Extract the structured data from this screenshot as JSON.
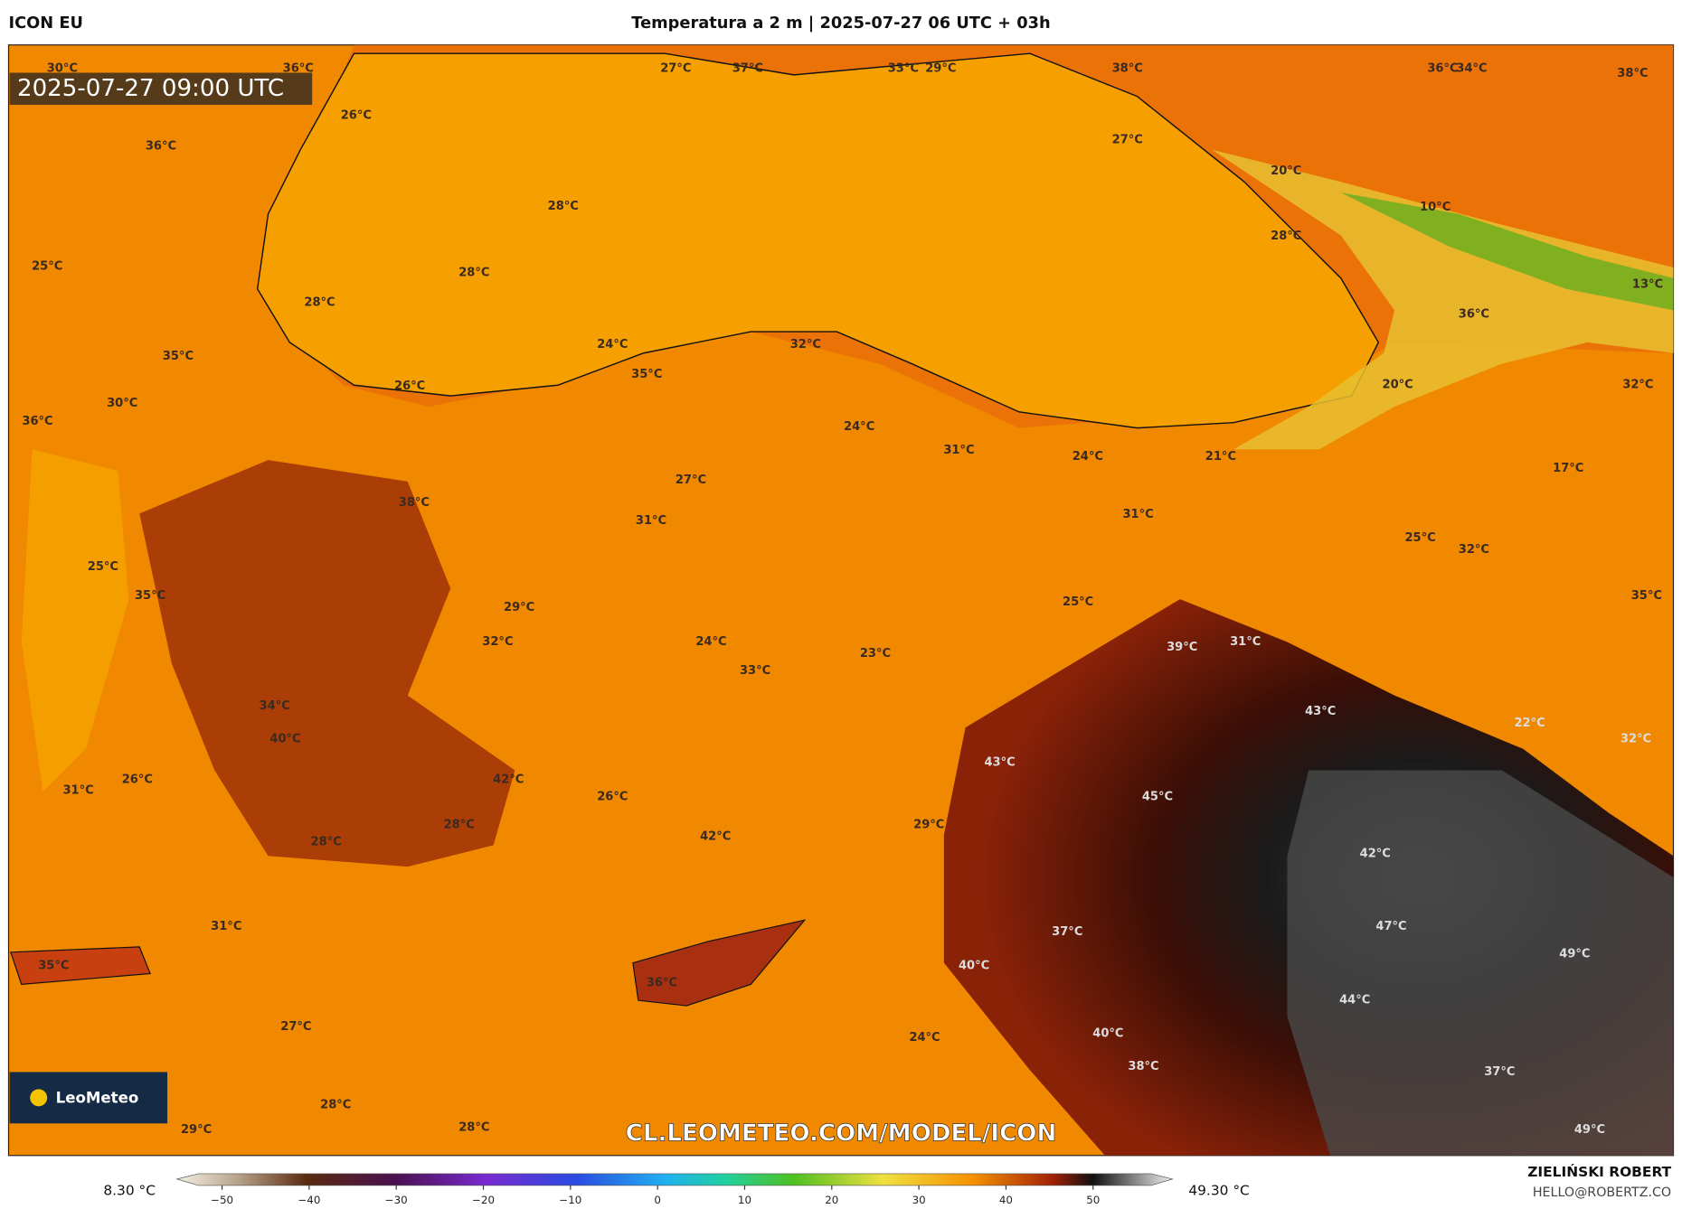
{
  "header": {
    "model": "ICON EU",
    "title": "Temperatura a 2 m | 2025-07-27 06 UTC + 03h"
  },
  "map": {
    "timestamp": "2025-07-27 09:00 UTC",
    "watermark": "CL.LEOMETEO.COM/MODEL/ICON",
    "logo": "LeoMeteo",
    "labels": [
      "30°C",
      "36°C",
      "27°C",
      "37°C",
      "33°C",
      "29°C",
      "38°C",
      "36°C",
      "34°C",
      "38°C",
      "26°C",
      "36°C",
      "27°C",
      "20°C",
      "28°C",
      "10°C",
      "28°C",
      "25°C",
      "28°C",
      "13°C",
      "28°C",
      "36°C",
      "24°C",
      "32°C",
      "35°C",
      "35°C",
      "20°C",
      "32°C",
      "26°C",
      "30°C",
      "36°C",
      "24°C",
      "31°C",
      "24°C",
      "21°C",
      "17°C",
      "27°C",
      "38°C",
      "31°C",
      "31°C",
      "25°C",
      "32°C",
      "25°C",
      "35°C",
      "35°C",
      "29°C",
      "25°C",
      "32°C",
      "24°C",
      "39°C",
      "31°C",
      "23°C",
      "33°C",
      "43°C",
      "34°C",
      "40°C",
      "22°C",
      "32°C",
      "43°C",
      "42°C",
      "26°C",
      "45°C",
      "31°C",
      "26°C",
      "28°C",
      "29°C",
      "42°C",
      "28°C",
      "42°C",
      "47°C",
      "31°C",
      "37°C",
      "49°C",
      "40°C",
      "35°C",
      "36°C",
      "44°C",
      "27°C",
      "40°C",
      "24°C",
      "38°C",
      "37°C",
      "28°C",
      "29°C",
      "28°C",
      "49°C"
    ]
  },
  "colorbar": {
    "min_label": "8.30 °C",
    "max_label": "49.30 °C",
    "ticks": [
      "−50",
      "−40",
      "−30",
      "−20",
      "−10",
      "0",
      "10",
      "20",
      "30",
      "40",
      "50"
    ]
  },
  "footer": {
    "author": "ZIELIŃSKI ROBERT",
    "email": "HELLO@ROBERTZ.CO"
  }
}
